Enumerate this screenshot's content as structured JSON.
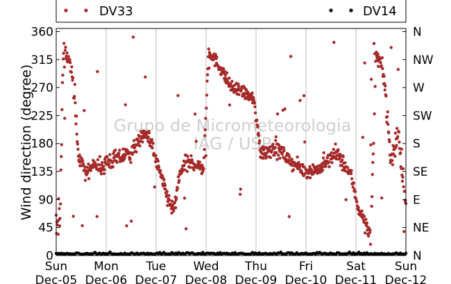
{
  "chart_data": {
    "type": "scatter",
    "ylabel": "Wind direction (degree)",
    "ylim": [
      0,
      365
    ],
    "yticks": [
      0,
      45,
      90,
      135,
      180,
      225,
      270,
      315,
      360
    ],
    "right_ticks": [
      {
        "value": 0,
        "label": "N"
      },
      {
        "value": 45,
        "label": "NE"
      },
      {
        "value": 90,
        "label": "E"
      },
      {
        "value": 135,
        "label": "SE"
      },
      {
        "value": 180,
        "label": "S"
      },
      {
        "value": 225,
        "label": "SW"
      },
      {
        "value": 270,
        "label": "W"
      },
      {
        "value": 315,
        "label": "NW"
      },
      {
        "value": 360,
        "label": "N"
      }
    ],
    "xlim": [
      0,
      7
    ],
    "x_unit": "days after Sun Dec-05",
    "xticks": [
      {
        "value": 0,
        "line1": "Sun",
        "line2": "Dec-05"
      },
      {
        "value": 1,
        "line1": "Mon",
        "line2": "Dec-06"
      },
      {
        "value": 2,
        "line1": "Tue",
        "line2": "Dec-07"
      },
      {
        "value": 3,
        "line1": "Wed",
        "line2": "Dec-08"
      },
      {
        "value": 4,
        "line1": "Thu",
        "line2": "Dec-09"
      },
      {
        "value": 5,
        "line1": "Fri",
        "line2": "Dec-10"
      },
      {
        "value": 6,
        "line1": "Sat",
        "line2": "Dec-11"
      },
      {
        "value": 7,
        "line1": "Sun",
        "line2": "Dec-12"
      }
    ],
    "grid": "vertical",
    "legend_placement": "top",
    "watermark": [
      "Grupo de Micrometeorologia",
      "IAG / USP"
    ],
    "series": [
      {
        "name": "DV33",
        "color": "#a52a2a",
        "trend": [
          [
            0.0,
            60,
            40
          ],
          [
            0.08,
            60,
            50
          ],
          [
            0.14,
            330,
            25
          ],
          [
            0.22,
            320,
            20
          ],
          [
            0.32,
            295,
            20
          ],
          [
            0.45,
            160,
            20
          ],
          [
            0.6,
            130,
            15
          ],
          [
            0.75,
            150,
            15
          ],
          [
            0.9,
            140,
            20
          ],
          [
            1.0,
            150,
            20
          ],
          [
            1.2,
            155,
            20
          ],
          [
            1.5,
            165,
            20
          ],
          [
            1.7,
            190,
            15
          ],
          [
            1.85,
            195,
            15
          ],
          [
            2.05,
            140,
            15
          ],
          [
            2.2,
            100,
            20
          ],
          [
            2.35,
            70,
            20
          ],
          [
            2.5,
            140,
            20
          ],
          [
            2.7,
            150,
            20
          ],
          [
            2.95,
            140,
            15
          ],
          [
            3.05,
            330,
            15
          ],
          [
            3.3,
            300,
            15
          ],
          [
            3.5,
            270,
            15
          ],
          [
            3.8,
            260,
            15
          ],
          [
            3.95,
            250,
            15
          ],
          [
            4.1,
            165,
            20
          ],
          [
            4.4,
            175,
            20
          ],
          [
            4.7,
            150,
            15
          ],
          [
            5.0,
            135,
            15
          ],
          [
            5.3,
            140,
            15
          ],
          [
            5.6,
            165,
            20
          ],
          [
            5.9,
            130,
            15
          ],
          [
            6.05,
            75,
            15
          ],
          [
            6.2,
            50,
            20
          ],
          [
            6.3,
            30,
            15
          ],
          [
            6.4,
            325,
            20
          ],
          [
            6.55,
            300,
            20
          ],
          [
            6.7,
            150,
            30
          ],
          [
            6.85,
            200,
            30
          ],
          [
            7.0,
            80,
            30
          ]
        ]
      },
      {
        "name": "DV14",
        "color": "#000000",
        "trend": [
          [
            0.0,
            2,
            2
          ],
          [
            7.0,
            2,
            2
          ]
        ]
      }
    ]
  }
}
